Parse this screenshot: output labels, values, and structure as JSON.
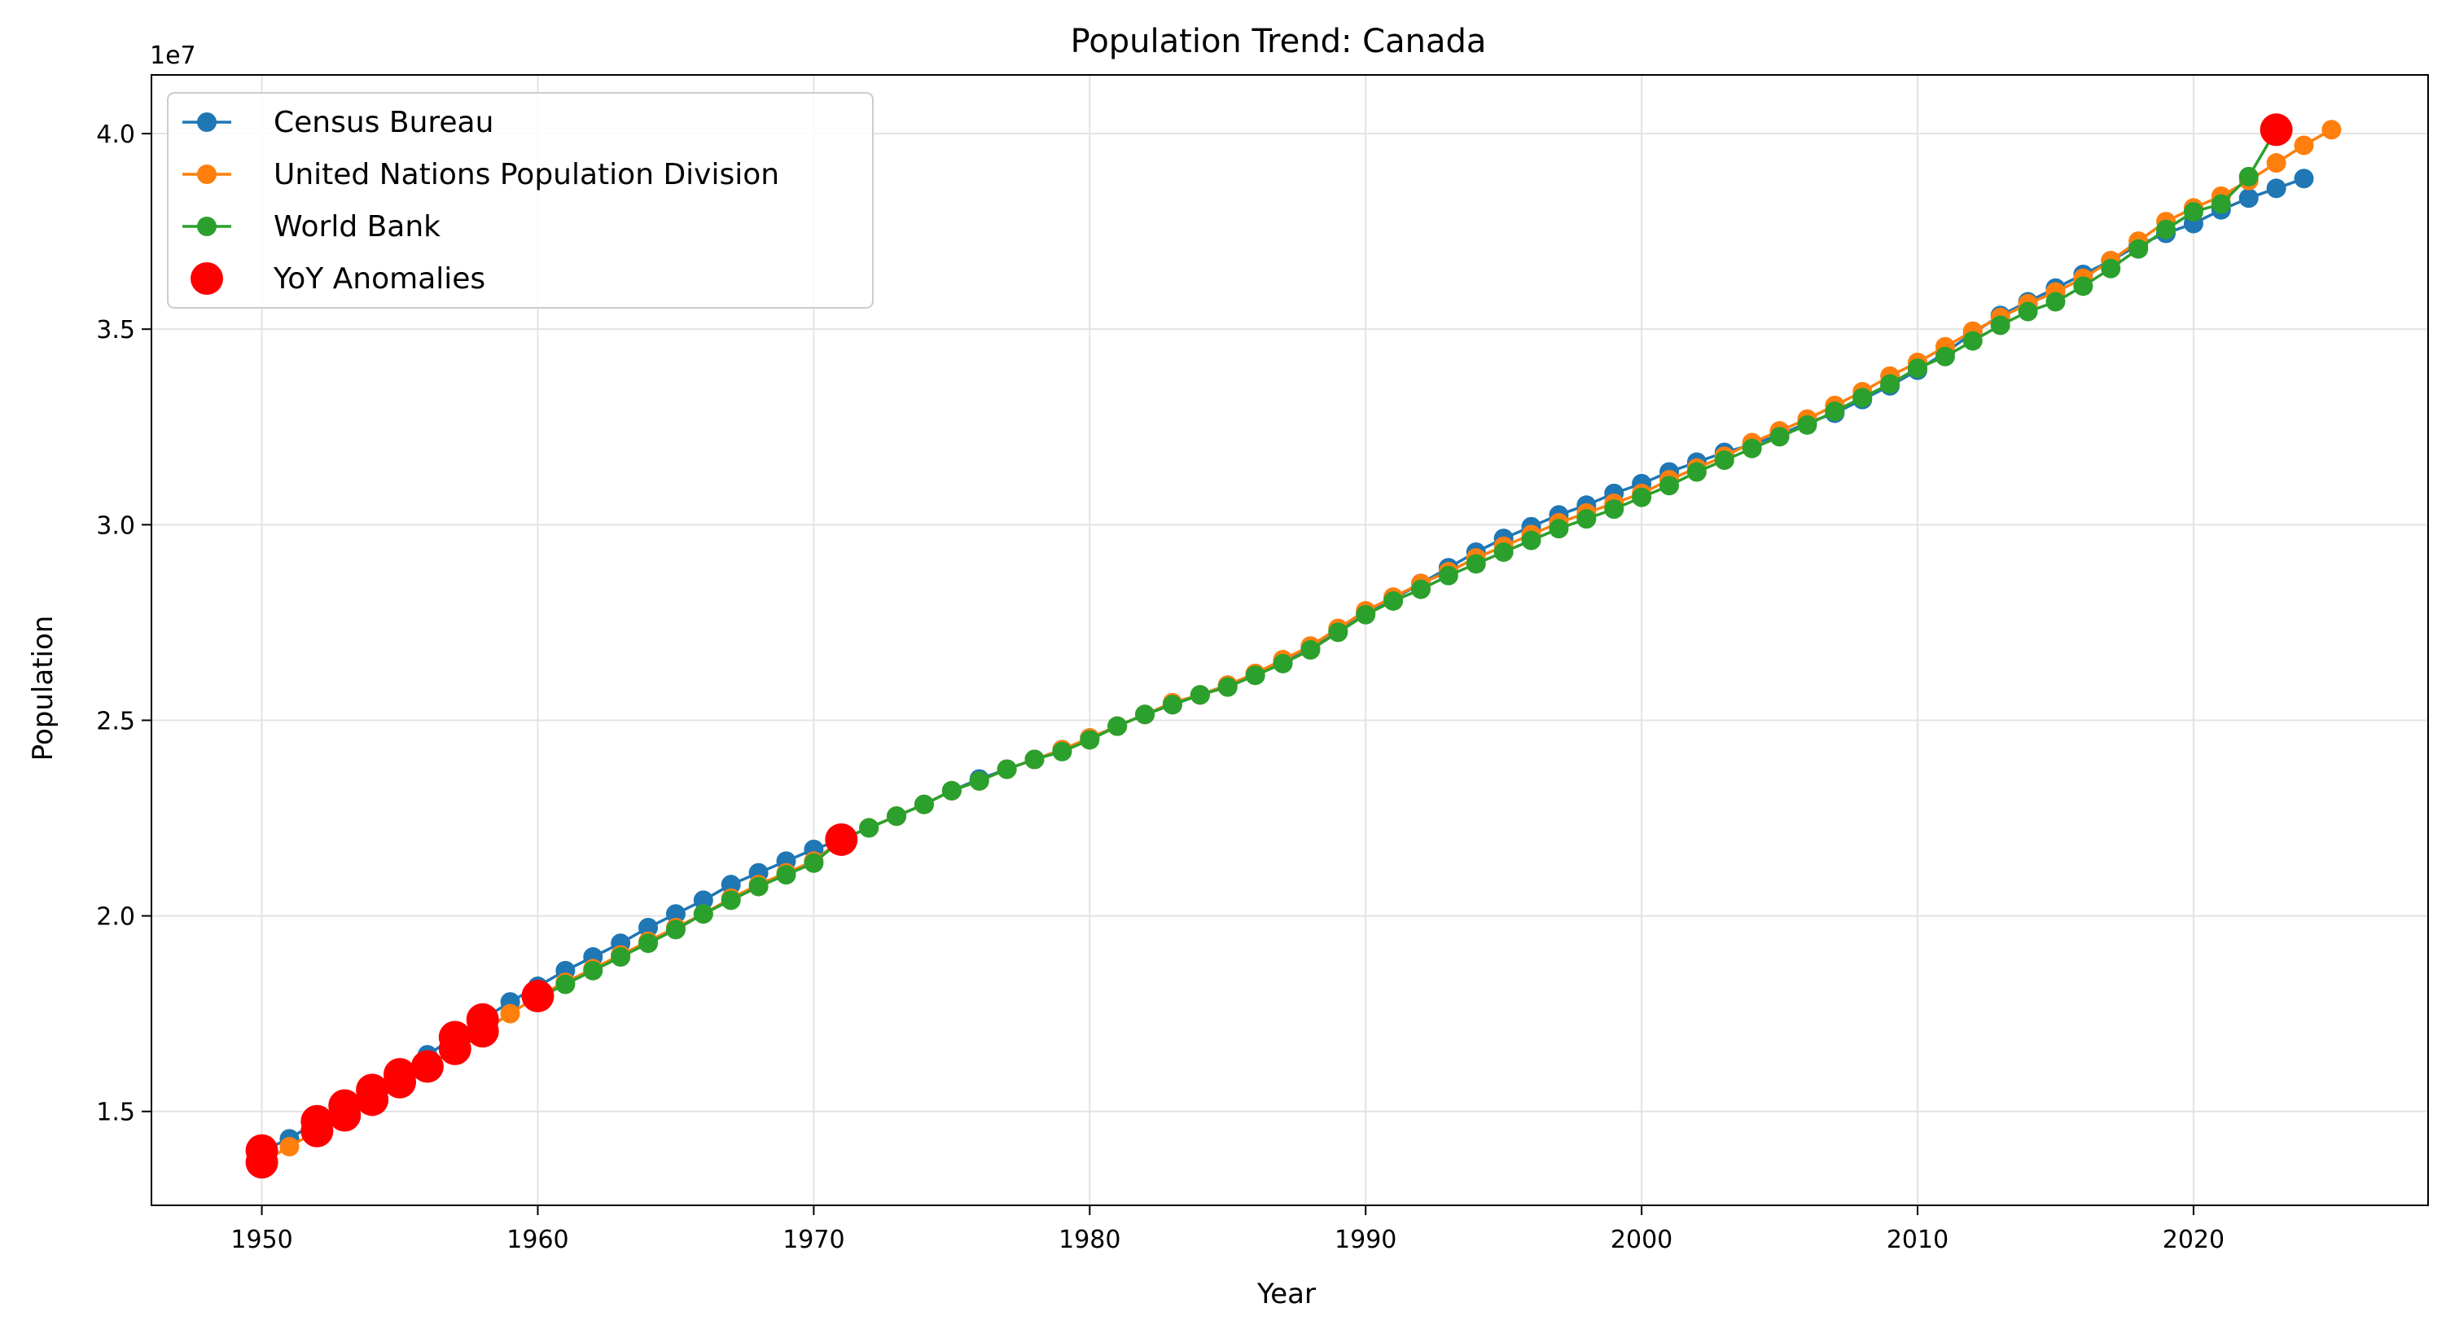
{
  "chart_data": {
    "type": "line",
    "title": "Population Trend: Canada",
    "xlabel": "Year",
    "ylabel": "Population",
    "y_offset_label": "1e7",
    "xlim": [
      1946,
      2028.5
    ],
    "ylim": [
      12600000,
      41500000
    ],
    "x_ticks": [
      1950,
      1960,
      1970,
      1980,
      1990,
      2000,
      2010,
      2020
    ],
    "x_tick_labels": [
      "1950",
      "1960",
      "1970",
      "1980",
      "1990",
      "2000",
      "2010",
      "2020"
    ],
    "y_ticks": [
      15000000,
      20000000,
      25000000,
      30000000,
      35000000,
      40000000
    ],
    "y_tick_labels": [
      "1.5",
      "2.0",
      "2.5",
      "3.0",
      "3.5",
      "4.0"
    ],
    "grid": true,
    "legend_position": "top-left",
    "series": [
      {
        "name": "Census Bureau",
        "color": "#1f77b4",
        "x": [
          1950,
          1951,
          1952,
          1953,
          1954,
          1955,
          1956,
          1957,
          1958,
          1959,
          1960,
          1961,
          1962,
          1963,
          1964,
          1965,
          1966,
          1967,
          1968,
          1969,
          1970,
          1971,
          1972,
          1973,
          1974,
          1975,
          1976,
          1977,
          1978,
          1979,
          1980,
          1981,
          1982,
          1983,
          1984,
          1985,
          1986,
          1987,
          1988,
          1989,
          1990,
          1991,
          1992,
          1993,
          1994,
          1995,
          1996,
          1997,
          1998,
          1999,
          2000,
          2001,
          2002,
          2003,
          2004,
          2005,
          2006,
          2007,
          2008,
          2009,
          2010,
          2011,
          2012,
          2013,
          2014,
          2015,
          2016,
          2017,
          2018,
          2019,
          2020,
          2021,
          2022,
          2023,
          2024
        ],
        "y": [
          14000000,
          14300000,
          14750000,
          15150000,
          15550000,
          15950000,
          16450000,
          16900000,
          17350000,
          17800000,
          18200000,
          18600000,
          18950000,
          19300000,
          19700000,
          20050000,
          20400000,
          20800000,
          21100000,
          21400000,
          21700000,
          21950000,
          22250000,
          22550000,
          22850000,
          23200000,
          23500000,
          23750000,
          24000000,
          24250000,
          24550000,
          24850000,
          25150000,
          25400000,
          25650000,
          25900000,
          26150000,
          26500000,
          26850000,
          27300000,
          27750000,
          28100000,
          28500000,
          28900000,
          29300000,
          29650000,
          29950000,
          30250000,
          30500000,
          30800000,
          31050000,
          31350000,
          31600000,
          31850000,
          32050000,
          32300000,
          32600000,
          32850000,
          33200000,
          33550000,
          33950000,
          34400000,
          34900000,
          35350000,
          35700000,
          36050000,
          36400000,
          36750000,
          37150000,
          37450000,
          37700000,
          38050000,
          38350000,
          38600000,
          38850000
        ]
      },
      {
        "name": "United Nations Population Division",
        "color": "#ff7f0e",
        "x": [
          1950,
          1951,
          1952,
          1953,
          1954,
          1955,
          1956,
          1957,
          1958,
          1959,
          1960,
          1961,
          1962,
          1963,
          1964,
          1965,
          1966,
          1967,
          1968,
          1969,
          1970,
          1971,
          1972,
          1973,
          1974,
          1975,
          1976,
          1977,
          1978,
          1979,
          1980,
          1981,
          1982,
          1983,
          1984,
          1985,
          1986,
          1987,
          1988,
          1989,
          1990,
          1991,
          1992,
          1993,
          1994,
          1995,
          1996,
          1997,
          1998,
          1999,
          2000,
          2001,
          2002,
          2003,
          2004,
          2005,
          2006,
          2007,
          2008,
          2009,
          2010,
          2011,
          2012,
          2013,
          2014,
          2015,
          2016,
          2017,
          2018,
          2019,
          2020,
          2021,
          2022,
          2023,
          2024,
          2025
        ],
        "y": [
          13700000,
          14100000,
          14500000,
          14900000,
          15300000,
          15750000,
          16150000,
          16600000,
          17050000,
          17500000,
          17950000,
          18300000,
          18650000,
          19000000,
          19350000,
          19700000,
          20050000,
          20450000,
          20800000,
          21100000,
          21400000,
          21950000,
          22250000,
          22550000,
          22850000,
          23200000,
          23450000,
          23750000,
          24000000,
          24250000,
          24550000,
          24850000,
          25150000,
          25450000,
          25650000,
          25900000,
          26200000,
          26550000,
          26900000,
          27350000,
          27800000,
          28150000,
          28500000,
          28800000,
          29150000,
          29450000,
          29750000,
          30050000,
          30300000,
          30550000,
          30800000,
          31150000,
          31450000,
          31750000,
          32100000,
          32400000,
          32700000,
          33050000,
          33400000,
          33800000,
          34150000,
          34550000,
          34950000,
          35300000,
          35650000,
          35950000,
          36300000,
          36750000,
          37250000,
          37750000,
          38100000,
          38400000,
          38800000,
          39250000,
          39700000,
          40100000
        ]
      },
      {
        "name": "World Bank",
        "color": "#2ca02c",
        "x": [
          1960,
          1961,
          1962,
          1963,
          1964,
          1965,
          1966,
          1967,
          1968,
          1969,
          1970,
          1971,
          1972,
          1973,
          1974,
          1975,
          1976,
          1977,
          1978,
          1979,
          1980,
          1981,
          1982,
          1983,
          1984,
          1985,
          1986,
          1987,
          1988,
          1989,
          1990,
          1991,
          1992,
          1993,
          1994,
          1995,
          1996,
          1997,
          1998,
          1999,
          2000,
          2001,
          2002,
          2003,
          2004,
          2005,
          2006,
          2007,
          2008,
          2009,
          2010,
          2011,
          2012,
          2013,
          2014,
          2015,
          2016,
          2017,
          2018,
          2019,
          2020,
          2021,
          2022,
          2023
        ],
        "y": [
          17900000,
          18250000,
          18600000,
          18950000,
          19300000,
          19650000,
          20050000,
          20400000,
          20750000,
          21050000,
          21350000,
          21950000,
          22250000,
          22550000,
          22850000,
          23200000,
          23450000,
          23750000,
          24000000,
          24200000,
          24500000,
          24850000,
          25150000,
          25400000,
          25650000,
          25850000,
          26150000,
          26450000,
          26800000,
          27250000,
          27700000,
          28050000,
          28350000,
          28700000,
          29000000,
          29300000,
          29600000,
          29900000,
          30150000,
          30400000,
          30700000,
          31000000,
          31350000,
          31650000,
          31950000,
          32250000,
          32550000,
          32900000,
          33250000,
          33600000,
          34000000,
          34300000,
          34700000,
          35100000,
          35450000,
          35700000,
          36100000,
          36550000,
          37050000,
          37550000,
          38000000,
          38200000,
          38900000,
          40100000
        ]
      }
    ],
    "anomalies": {
      "name": "YoY Anomalies",
      "color": "#ff0000",
      "x": [
        1950,
        1950,
        1952,
        1952,
        1953,
        1953,
        1954,
        1954,
        1955,
        1955,
        1956,
        1957,
        1957,
        1958,
        1958,
        1960,
        1971,
        2023
      ],
      "y": [
        14000000,
        13700000,
        14750000,
        14500000,
        15150000,
        14900000,
        15550000,
        15300000,
        15950000,
        15750000,
        16150000,
        16900000,
        16600000,
        17350000,
        17050000,
        17950000,
        21950000,
        40100000
      ]
    }
  }
}
